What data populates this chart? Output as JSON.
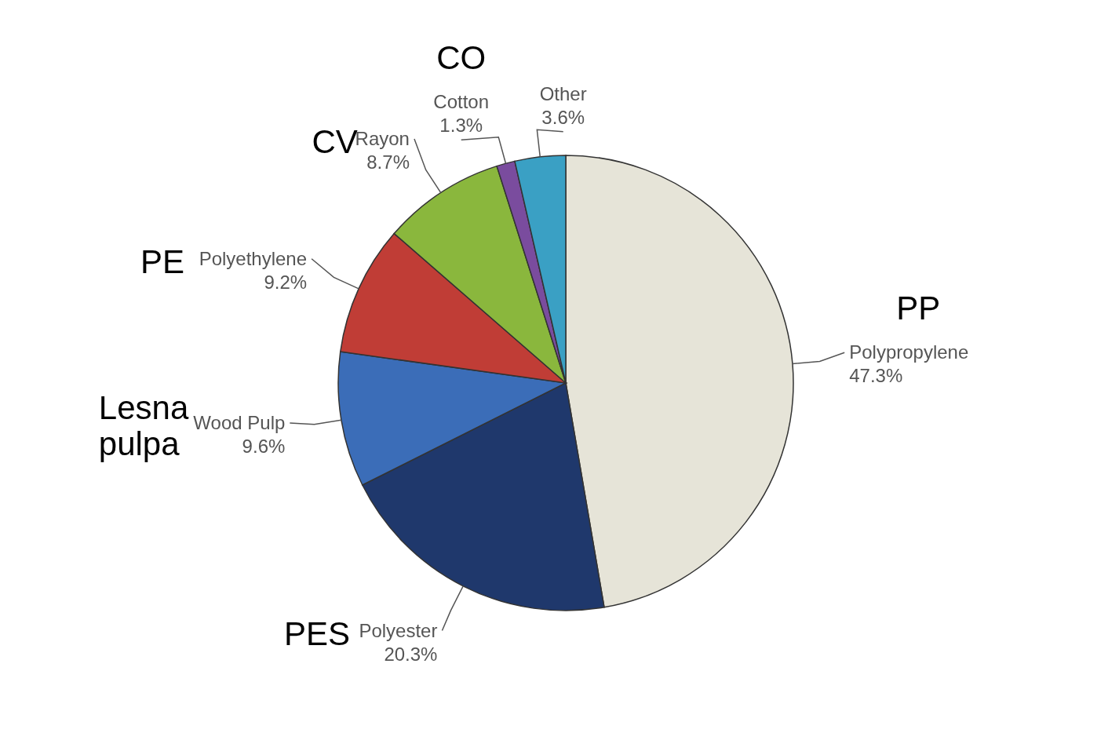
{
  "chart_data": {
    "type": "pie",
    "categories": [
      "Polypropylene",
      "Polyester",
      "Wood Pulp",
      "Polyethylene",
      "Rayon",
      "Cotton",
      "Other"
    ],
    "values": [
      47.3,
      20.3,
      9.6,
      9.2,
      8.7,
      1.3,
      3.6
    ],
    "colors": [
      "#e6e4d8",
      "#1f386c",
      "#3b6db8",
      "#c03d36",
      "#8ab73d",
      "#7a4c9e",
      "#3aa0c4"
    ],
    "value_labels": [
      "47.3%",
      "20.3%",
      "9.6%",
      "9.2%",
      "8.7%",
      "1.3%",
      "3.6%"
    ],
    "annotations": [
      "PP",
      "PES",
      "Lesna pulpa",
      "PE",
      "CV",
      "CO"
    ]
  }
}
